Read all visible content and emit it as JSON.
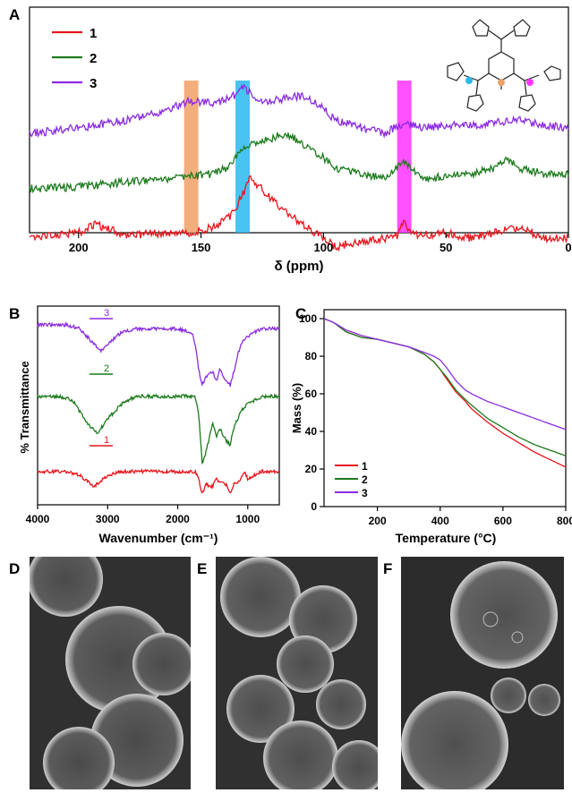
{
  "figure": {
    "panel_labels": [
      "A",
      "B",
      "C",
      "D",
      "E",
      "F"
    ]
  },
  "colors": {
    "red": "#e8141b",
    "green": "#1c7a1c",
    "purple": "#8a2be2",
    "orange": "#f0a066",
    "cyan": "#29b8f0",
    "magenta": "#ff33ff"
  },
  "chart_data": [
    {
      "panel": "A",
      "type": "line",
      "xlabel": "δ (ppm)",
      "ylabel": "",
      "xlim": [
        220,
        0
      ],
      "xticks": [
        200,
        150,
        100,
        50,
        0
      ],
      "reversed_x": true,
      "highlight_bands": [
        {
          "center": 154,
          "color": "orange"
        },
        {
          "center": 133,
          "color": "cyan"
        },
        {
          "center": 67,
          "color": "magenta"
        }
      ],
      "legend_placement": "top-left",
      "series": [
        {
          "name": "1",
          "color": "red",
          "x": [
            220,
            200,
            193,
            180,
            165,
            155,
            145,
            138,
            133,
            130,
            128,
            120,
            110,
            100,
            95,
            90,
            80,
            70,
            67,
            65,
            60,
            50,
            40,
            30,
            20,
            10,
            0
          ],
          "y": [
            0.08,
            0.12,
            0.18,
            0.1,
            0.12,
            0.12,
            0.16,
            0.24,
            0.4,
            0.55,
            0.5,
            0.35,
            0.2,
            0.08,
            0.01,
            0.04,
            0.06,
            0.1,
            0.2,
            0.12,
            0.1,
            0.12,
            0.08,
            0.12,
            0.16,
            0.08,
            0.08
          ]
        },
        {
          "name": "2",
          "color": "green",
          "x": [
            220,
            200,
            180,
            165,
            155,
            145,
            138,
            133,
            125,
            115,
            110,
            100,
            95,
            85,
            75,
            67,
            60,
            50,
            40,
            30,
            25,
            20,
            10,
            0
          ],
          "y": [
            0.45,
            0.46,
            0.5,
            0.52,
            0.54,
            0.56,
            0.62,
            0.76,
            0.8,
            0.86,
            0.8,
            0.68,
            0.6,
            0.56,
            0.52,
            0.66,
            0.52,
            0.54,
            0.56,
            0.6,
            0.68,
            0.6,
            0.56,
            0.56
          ]
        },
        {
          "name": "3",
          "color": "purple",
          "x": [
            220,
            200,
            180,
            165,
            155,
            145,
            138,
            133,
            125,
            115,
            108,
            100,
            95,
            88,
            80,
            75,
            67,
            60,
            50,
            40,
            30,
            20,
            10,
            0
          ],
          "y": [
            0.86,
            0.9,
            0.96,
            1.02,
            1.1,
            1.08,
            1.12,
            1.2,
            1.1,
            1.12,
            1.14,
            1.04,
            0.96,
            0.92,
            0.88,
            0.86,
            0.94,
            0.9,
            0.92,
            0.92,
            0.94,
            0.96,
            0.92,
            0.9
          ]
        }
      ]
    },
    {
      "panel": "B",
      "type": "line",
      "xlabel": "Wavenumber (cm⁻¹)",
      "ylabel": "% Transmittance",
      "xlim": [
        4000,
        550
      ],
      "xticks": [
        4000,
        3000,
        2000,
        1000
      ],
      "legend_placement": "inline",
      "series": [
        {
          "name": "1",
          "color": "red",
          "x": [
            4000,
            3600,
            3400,
            3200,
            3000,
            2800,
            2600,
            2000,
            1750,
            1700,
            1650,
            1600,
            1500,
            1450,
            1400,
            1300,
            1250,
            1200,
            1100,
            1050,
            1000,
            800,
            600
          ],
          "y": [
            0.12,
            0.12,
            0.1,
            0.04,
            0.1,
            0.12,
            0.12,
            0.12,
            0.12,
            0.08,
            0.0,
            0.05,
            0.04,
            0.09,
            0.06,
            0.05,
            0.0,
            0.05,
            0.08,
            0.12,
            0.08,
            0.12,
            0.12
          ]
        },
        {
          "name": "2",
          "color": "green",
          "x": [
            4000,
            3700,
            3500,
            3300,
            3150,
            3000,
            2800,
            2600,
            2000,
            1750,
            1700,
            1650,
            1600,
            1500,
            1450,
            1400,
            1300,
            1250,
            1200,
            1100,
            1000,
            800,
            600
          ],
          "y": [
            0.52,
            0.52,
            0.5,
            0.38,
            0.32,
            0.4,
            0.48,
            0.52,
            0.52,
            0.52,
            0.42,
            0.16,
            0.22,
            0.38,
            0.3,
            0.35,
            0.28,
            0.26,
            0.35,
            0.44,
            0.48,
            0.52,
            0.52
          ]
        },
        {
          "name": "3",
          "color": "purple",
          "x": [
            4000,
            3600,
            3400,
            3200,
            3100,
            3000,
            2800,
            2600,
            2000,
            1800,
            1750,
            1700,
            1650,
            1600,
            1500,
            1450,
            1400,
            1300,
            1250,
            1200,
            1100,
            1000,
            800,
            600
          ],
          "y": [
            0.9,
            0.9,
            0.88,
            0.8,
            0.76,
            0.8,
            0.86,
            0.88,
            0.88,
            0.86,
            0.8,
            0.66,
            0.58,
            0.62,
            0.65,
            0.6,
            0.66,
            0.6,
            0.58,
            0.65,
            0.8,
            0.84,
            0.88,
            0.88
          ]
        }
      ]
    },
    {
      "panel": "C",
      "type": "line",
      "xlabel": "Temperature (°C)",
      "ylabel": "Mass (%)",
      "xlim": [
        30,
        800
      ],
      "ylim": [
        0,
        100
      ],
      "xticks": [
        200,
        400,
        600,
        800
      ],
      "yticks": [
        0,
        20,
        40,
        60,
        80,
        100
      ],
      "legend_placement": "bottom-left",
      "series": [
        {
          "name": "1",
          "color": "red",
          "x": [
            30,
            60,
            100,
            150,
            200,
            250,
            300,
            350,
            380,
            400,
            420,
            450,
            480,
            500,
            550,
            600,
            650,
            700,
            750,
            800
          ],
          "y": [
            100,
            98,
            93,
            90,
            89,
            87,
            85,
            81,
            77,
            73,
            68,
            61,
            56,
            52,
            45,
            39,
            34,
            29,
            25,
            21
          ]
        },
        {
          "name": "2",
          "color": "green",
          "x": [
            30,
            60,
            100,
            150,
            200,
            250,
            300,
            350,
            380,
            400,
            420,
            450,
            480,
            500,
            550,
            600,
            650,
            700,
            750,
            800
          ],
          "y": [
            100,
            98,
            93,
            90,
            89,
            87,
            85,
            81,
            77,
            73,
            69,
            62,
            57,
            54,
            47,
            42,
            37,
            33,
            30,
            27
          ]
        },
        {
          "name": "3",
          "color": "purple",
          "x": [
            30,
            60,
            100,
            150,
            200,
            250,
            300,
            350,
            380,
            400,
            420,
            450,
            480,
            500,
            550,
            600,
            650,
            700,
            750,
            800
          ],
          "y": [
            100,
            98,
            94,
            91,
            89,
            87,
            85,
            82,
            80,
            78,
            74,
            67,
            62,
            60,
            56,
            53,
            50,
            47,
            44,
            41
          ]
        }
      ]
    }
  ]
}
